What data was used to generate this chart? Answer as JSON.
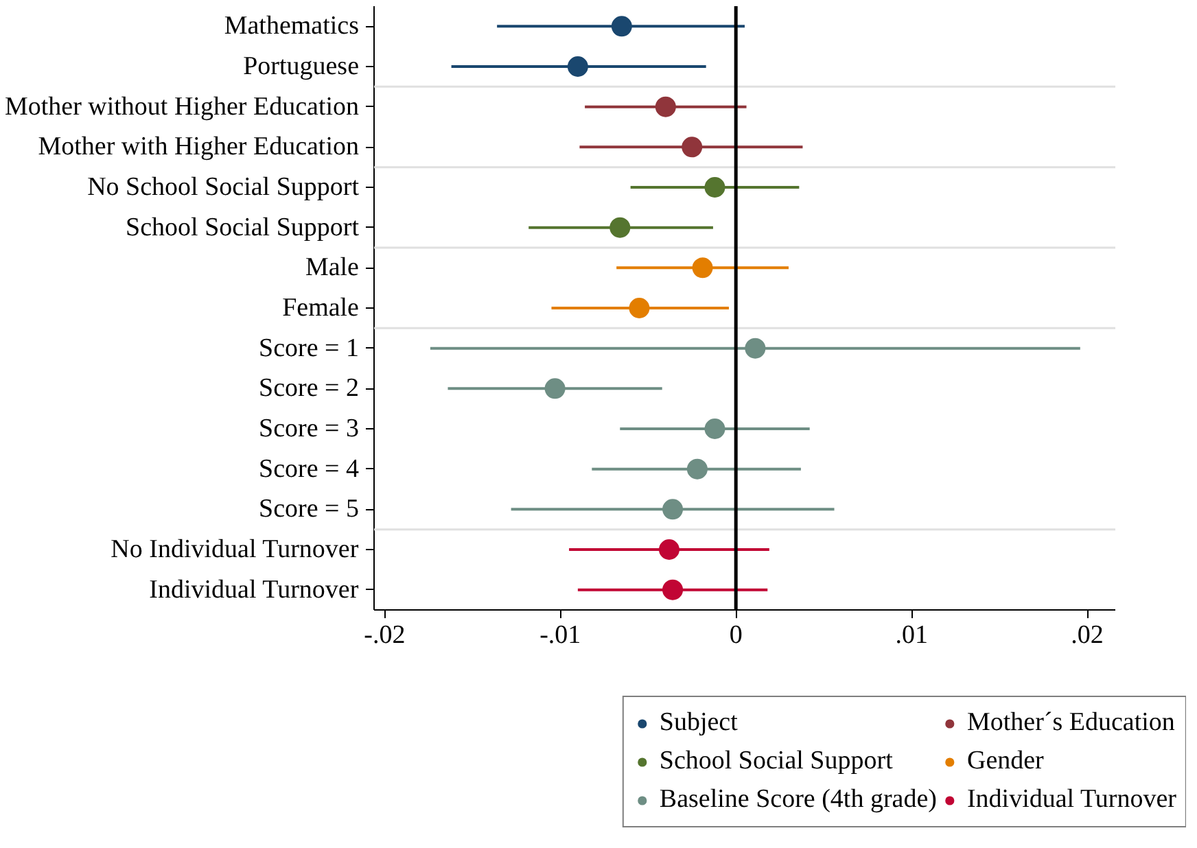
{
  "chart_data": {
    "type": "scatter",
    "orientation": "horizontal",
    "categories": [
      "Mathematics",
      "Portuguese",
      "Mother without Higher Education",
      "Mother with Higher Education",
      "No School Social Support",
      "School Social Support",
      "Male",
      "Female",
      "Score = 1",
      "Score = 2",
      "Score = 3",
      "Score = 4",
      "Score = 5",
      "No Individual Turnover",
      "Individual Turnover"
    ],
    "series": [
      {
        "name": "Subject",
        "color": "#1a476f",
        "values": [
          -0.0065,
          -0.009,
          null,
          null,
          null,
          null,
          null,
          null,
          null,
          null,
          null,
          null,
          null,
          null,
          null
        ],
        "errors": [
          [
            -0.0136,
            0.0005
          ],
          [
            -0.0162,
            -0.0017
          ],
          null,
          null,
          null,
          null,
          null,
          null,
          null,
          null,
          null,
          null,
          null,
          null,
          null
        ]
      },
      {
        "name": "Mother´s Education",
        "color": "#90353b",
        "values": [
          null,
          null,
          -0.004,
          -0.0025,
          null,
          null,
          null,
          null,
          null,
          null,
          null,
          null,
          null,
          null,
          null
        ],
        "errors": [
          null,
          null,
          [
            -0.0086,
            0.0006
          ],
          [
            -0.0089,
            0.0038
          ],
          null,
          null,
          null,
          null,
          null,
          null,
          null,
          null,
          null,
          null,
          null
        ]
      },
      {
        "name": "School Social Support",
        "color": "#55752f",
        "values": [
          null,
          null,
          null,
          null,
          -0.0012,
          -0.0066,
          null,
          null,
          null,
          null,
          null,
          null,
          null,
          null,
          null
        ],
        "errors": [
          null,
          null,
          null,
          null,
          [
            -0.006,
            0.0036
          ],
          [
            -0.0118,
            -0.0013
          ],
          null,
          null,
          null,
          null,
          null,
          null,
          null,
          null,
          null
        ]
      },
      {
        "name": "Gender",
        "color": "#e37e00",
        "values": [
          null,
          null,
          null,
          null,
          null,
          null,
          -0.0019,
          -0.0055,
          null,
          null,
          null,
          null,
          null,
          null,
          null
        ],
        "errors": [
          null,
          null,
          null,
          null,
          null,
          null,
          [
            -0.0068,
            0.003
          ],
          [
            -0.0105,
            -0.0004
          ],
          null,
          null,
          null,
          null,
          null,
          null,
          null
        ]
      },
      {
        "name": "Baseline Score (4th grade)",
        "color": "#6e8e84",
        "values": [
          null,
          null,
          null,
          null,
          null,
          null,
          null,
          null,
          0.0011,
          -0.0103,
          -0.0012,
          -0.0022,
          -0.0036,
          null,
          null
        ],
        "errors": [
          null,
          null,
          null,
          null,
          null,
          null,
          null,
          null,
          [
            -0.0174,
            0.0196
          ],
          [
            -0.0164,
            -0.0042
          ],
          [
            -0.0066,
            0.0042
          ],
          [
            -0.0082,
            0.0037
          ],
          [
            -0.0128,
            0.0056
          ],
          null,
          null
        ]
      },
      {
        "name": "Individual Turnover",
        "color": "#c10534",
        "values": [
          null,
          null,
          null,
          null,
          null,
          null,
          null,
          null,
          null,
          null,
          null,
          null,
          null,
          -0.0038,
          -0.0036
        ],
        "errors": [
          null,
          null,
          null,
          null,
          null,
          null,
          null,
          null,
          null,
          null,
          null,
          null,
          null,
          [
            -0.0095,
            0.0019
          ],
          [
            -0.009,
            0.0018
          ]
        ]
      }
    ],
    "xlim": [
      -0.0206,
      0.0216
    ],
    "xticks": [
      {
        "value": -0.02,
        "label": "-.02"
      },
      {
        "value": -0.01,
        "label": "-.01"
      },
      0,
      {
        "value": 0.01,
        "label": ".01"
      },
      {
        "value": 0.02,
        "label": ".02"
      }
    ],
    "ref_lines": [
      {
        "axis": "x",
        "value": 0,
        "color": "#000000"
      }
    ],
    "grid": false,
    "legend": "bottom",
    "marker": "circle"
  }
}
